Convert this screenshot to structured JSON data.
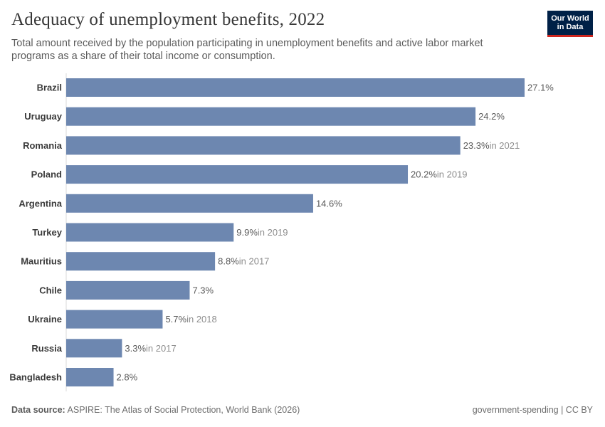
{
  "header": {
    "title": "Adequacy of unemployment benefits, 2022",
    "subtitle": "Total amount received by the population participating in unemployment benefits and active labor market programs as a share of their total income or consumption."
  },
  "logo": {
    "line1": "Our World",
    "line2": "in Data"
  },
  "footer": {
    "source_label": "Data source:",
    "source_text": "ASPIRE: The Atlas of Social Protection, World Bank (2026)",
    "right_text": "government-spending | CC BY"
  },
  "colors": {
    "bar": "#6d87b0",
    "value_text": "#5b5b5b",
    "year_note": "#8e8e8e",
    "axis": "#d9d9d9",
    "label": "#3a3a3a"
  },
  "chart_data": {
    "type": "bar",
    "orientation": "horizontal",
    "categories": [
      "Brazil",
      "Uruguay",
      "Romania",
      "Poland",
      "Argentina",
      "Turkey",
      "Mauritius",
      "Chile",
      "Ukraine",
      "Russia",
      "Bangladesh"
    ],
    "values": [
      27.1,
      24.2,
      23.3,
      20.2,
      14.6,
      9.9,
      8.8,
      7.3,
      5.7,
      3.3,
      2.8
    ],
    "value_labels": [
      "27.1%",
      "24.2%",
      "23.3%",
      "20.2%",
      "14.6%",
      "9.9%",
      "8.8%",
      "7.3%",
      "5.7%",
      "3.3%",
      "2.8%"
    ],
    "year_notes": [
      "",
      "",
      "in 2021",
      "in 2019",
      "",
      "in 2019",
      "in 2017",
      "",
      "in 2018",
      "in 2017",
      ""
    ],
    "xlim": [
      0,
      27.1
    ],
    "grid": false
  }
}
